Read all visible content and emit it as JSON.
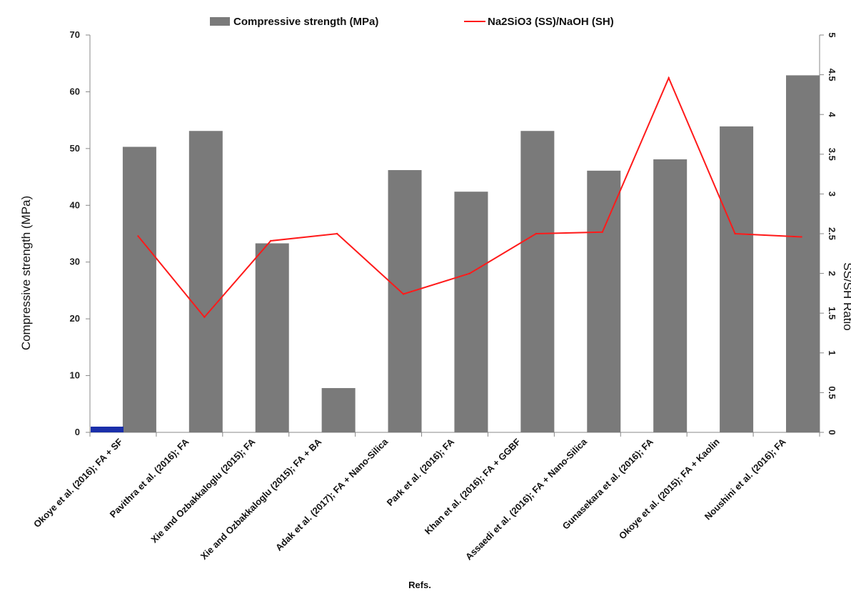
{
  "chart_data": {
    "type": "bar+line",
    "categories": [
      "Okoye et al. (2016); FA + SF",
      "Pavithra et al. (2016); FA",
      "Xie and Ozbakkaloglu (2015); FA",
      "Xie and Ozbakkaloglu (2015); FA + BA",
      "Adak et al. (2017); FA + Nano-Silica",
      "Park et al. (2016); FA",
      "Khan et al. (2016); FA + GGBF",
      "Assaedi et al. (2016); FA + Nano-Silica",
      "Gunasekara et al. (2016); FA",
      "Okoye et al. (2015); FA + Kaolin",
      "Noushini et al. (2016); FA"
    ],
    "series": [
      {
        "name": "Compressive strength (MPa)",
        "kind": "bar",
        "axis": "left",
        "color": "#7a7a7a",
        "values": [
          50.3,
          53.1,
          33.3,
          7.8,
          46.2,
          42.4,
          53.1,
          46.1,
          48.1,
          53.9,
          62.9
        ]
      },
      {
        "name": "Na2SiO3 (SS)/NaOH (SH)",
        "kind": "line",
        "axis": "right",
        "color": "#ff1a1a",
        "values": [
          2.47,
          1.45,
          2.41,
          2.5,
          1.74,
          2.0,
          2.5,
          2.52,
          4.46,
          2.5,
          2.46
        ]
      }
    ],
    "ylabel": "Compressive strength (MPa)",
    "y2label": "SS/SH Ratio",
    "xlabel": "Refs.",
    "ylim": [
      0,
      70
    ],
    "yticks": [
      "0",
      "10",
      "20",
      "30",
      "40",
      "50",
      "60",
      "70"
    ],
    "y2lim": [
      0,
      5
    ],
    "y2ticks": [
      "0",
      "0.5",
      "1",
      "1.5",
      "2",
      "2.5",
      "3",
      "3.5",
      "4",
      "4.5",
      "5"
    ],
    "marker_color": "#1a2faa",
    "legend_position": "top",
    "grid": false
  }
}
